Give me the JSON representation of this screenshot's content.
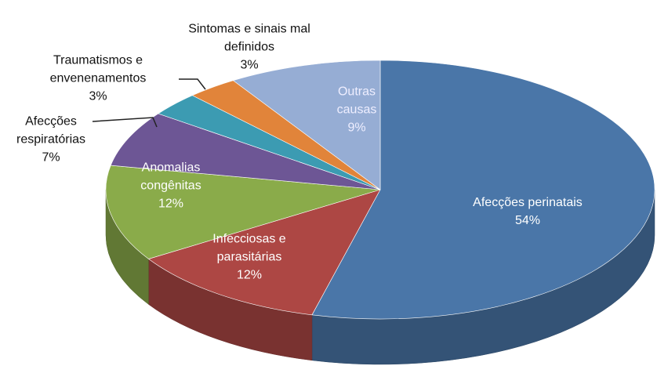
{
  "chart_data": {
    "type": "pie3d",
    "categories": [
      "Afecções perinatais",
      "Infecciosas e parasitárias",
      "Anomalias congênitas",
      "Afecções respiratórias",
      "Traumatismos e envenenamentos",
      "Sintomas e sinais mal definidos",
      "Outras causas"
    ],
    "values": [
      54,
      12,
      12,
      7,
      3,
      3,
      9
    ],
    "value_labels": [
      "54%",
      "12%",
      "12%",
      "7%",
      "3%",
      "3%",
      "9%"
    ],
    "colors": [
      "#4a76a8",
      "#ad4744",
      "#8aab4a",
      "#6d5695",
      "#3c9bb2",
      "#e1843a",
      "#96add4"
    ]
  }
}
